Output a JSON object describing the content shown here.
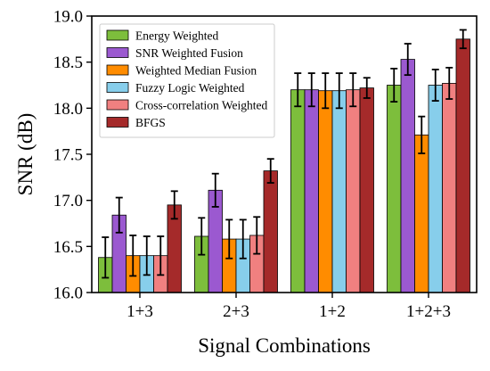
{
  "chart_data": {
    "type": "bar",
    "xlabel": "Signal Combinations",
    "ylabel": "SNR (dB)",
    "ylim": [
      16.0,
      19.0
    ],
    "yticks": [
      "16.0",
      "16.5",
      "17.0",
      "17.5",
      "18.0",
      "18.5",
      "19.0"
    ],
    "categories": [
      "1+3",
      "2+3",
      "1+2",
      "1+2+3"
    ],
    "legend_position": "top-left",
    "grid": false,
    "series": [
      {
        "name": "Energy Weighted",
        "color": "#7DBE3C",
        "values": [
          16.38,
          16.61,
          18.2,
          18.25
        ],
        "errors": [
          0.22,
          0.2,
          0.18,
          0.18
        ]
      },
      {
        "name": "SNR Weighted Fusion",
        "color": "#9B59D0",
        "values": [
          16.84,
          17.11,
          18.2,
          18.53
        ],
        "errors": [
          0.19,
          0.18,
          0.18,
          0.17
        ]
      },
      {
        "name": "Weighted Median Fusion",
        "color": "#FF8C00",
        "values": [
          16.4,
          16.58,
          18.19,
          17.71
        ],
        "errors": [
          0.22,
          0.21,
          0.19,
          0.2
        ]
      },
      {
        "name": "Fuzzy Logic Weighted",
        "color": "#87CEEB",
        "values": [
          16.4,
          16.58,
          18.19,
          18.25
        ],
        "errors": [
          0.21,
          0.21,
          0.19,
          0.17
        ]
      },
      {
        "name": "Cross-correlation Weighted",
        "color": "#F08080",
        "values": [
          16.4,
          16.62,
          18.2,
          18.27
        ],
        "errors": [
          0.21,
          0.2,
          0.18,
          0.17
        ]
      },
      {
        "name": "BFGS",
        "color": "#A52A2A",
        "values": [
          16.95,
          17.32,
          18.22,
          18.75
        ],
        "errors": [
          0.15,
          0.13,
          0.11,
          0.1
        ]
      }
    ]
  }
}
